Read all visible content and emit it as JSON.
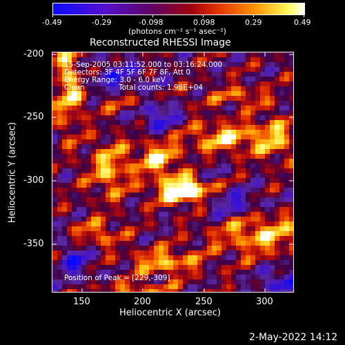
{
  "colorbar": {
    "tick_labels": [
      "-0.49",
      "-0.29",
      "-0.098",
      "0.098",
      "0.29",
      "0.49"
    ],
    "unit_label": "(photons cm⁻² s⁻¹ asec⁻²)"
  },
  "title": "Reconstructed RHESSI Image",
  "annotations": {
    "time": "15-Sep-2005 03:11:52.000 to 03:16:24.000",
    "detectors": "Detectors: 3F 4F 5F 6F 7F 8F, Att 0",
    "energy": "Energy Range: 3.0 - 6.0 keV",
    "method": "Clean",
    "counts": "Total counts: 1.98E+04",
    "peak": "Position of Peak = [229,-309]"
  },
  "axes": {
    "xlabel": "Heliocentric X (arcsec)",
    "ylabel": "Heliocentric Y (arcsec)",
    "xticks": [
      "150",
      "200",
      "250",
      "300"
    ],
    "yticks": [
      "-200",
      "-250",
      "-300",
      "-350"
    ]
  },
  "footer": {
    "date": "2-May-2022 14:12"
  }
}
